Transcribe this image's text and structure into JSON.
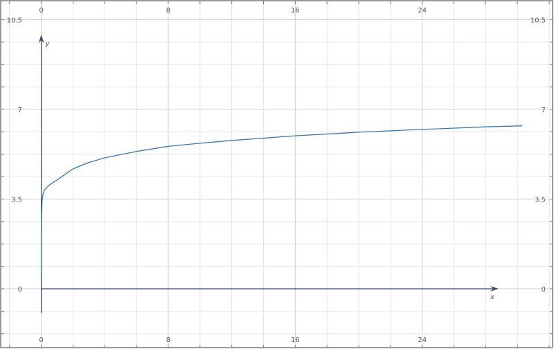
{
  "chart_data": {
    "type": "line",
    "xlabel": "x",
    "ylabel": "y",
    "xlim": [
      -2.6,
      32.3
    ],
    "ylim": [
      -2.35,
      11.27
    ],
    "x_ticks": [
      "0",
      "8",
      "16",
      "24"
    ],
    "x_tick_values": [
      0,
      8,
      16,
      24
    ],
    "y_ticks": [
      "0",
      "3.5",
      "7",
      "10.5"
    ],
    "y_tick_values": [
      0,
      3.5,
      7,
      10.5
    ],
    "x_minor_step": 2,
    "y_minor_step": 0.875,
    "grid": true,
    "series": [
      {
        "color": "#3a78a8",
        "x": [
          0.0005,
          0.002,
          0.005,
          0.01,
          0.02,
          0.05,
          0.1,
          0.2,
          0.5,
          1,
          2,
          3,
          4,
          6,
          8,
          10,
          12,
          16,
          20,
          24,
          28,
          30.3
        ],
        "y": [
          0.5,
          1.2,
          2.0,
          2.6,
          3.0,
          3.4,
          3.65,
          3.85,
          4.05,
          4.25,
          4.68,
          4.93,
          5.11,
          5.36,
          5.56,
          5.68,
          5.79,
          5.97,
          6.11,
          6.22,
          6.32,
          6.36
        ]
      }
    ]
  },
  "colors": {
    "axis": "#3d4a7a",
    "grid": "#e4e4e4",
    "major_grid": "#d0d0d0",
    "frame": "#999999"
  }
}
